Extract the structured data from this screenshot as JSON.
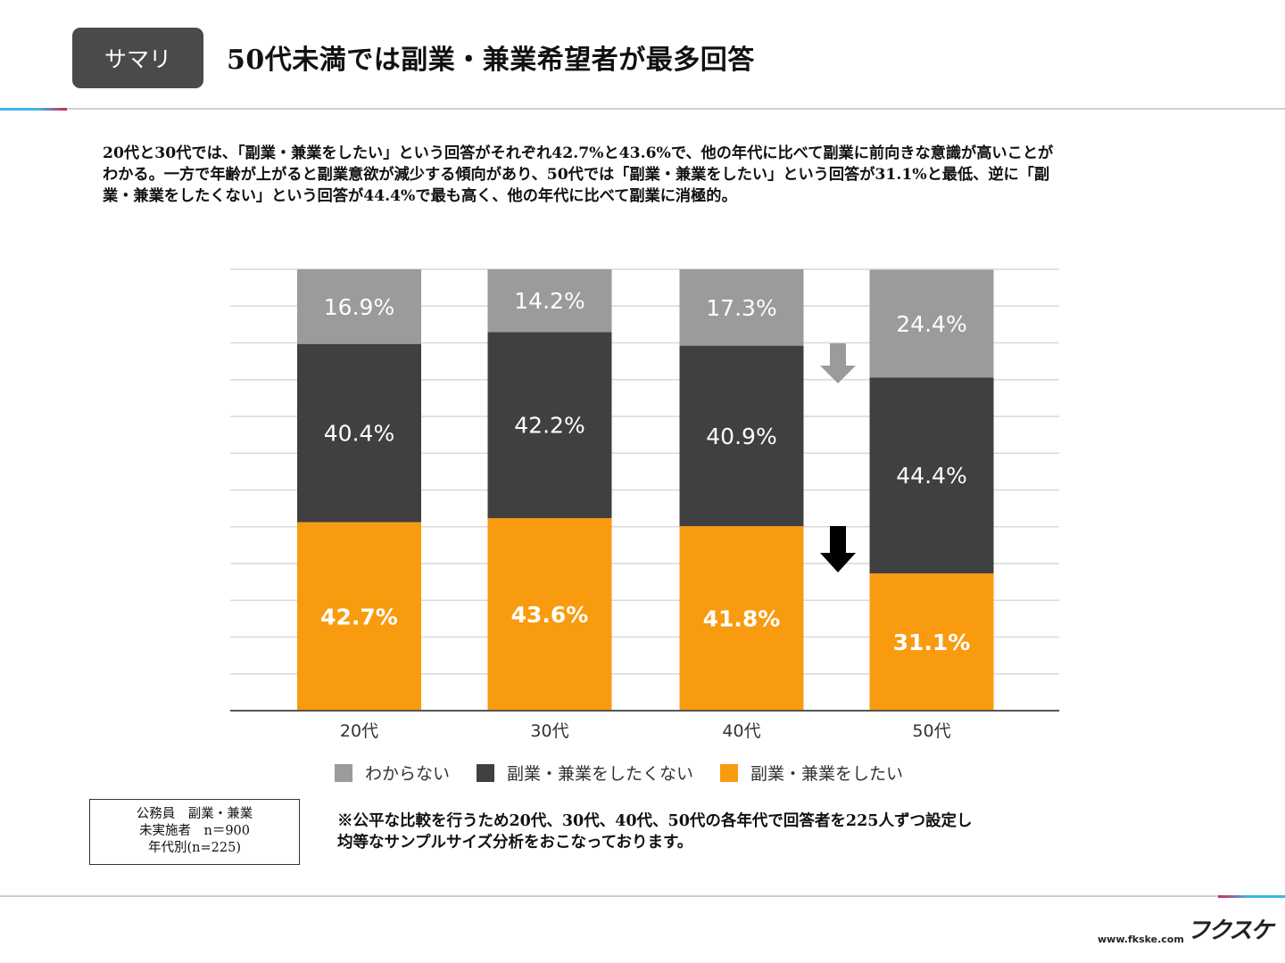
{
  "header": {
    "tag": "サマリ",
    "title": "50代未満では副業・兼業希望者が最多回答"
  },
  "summary": {
    "lines": [
      "20代と30代では、「副業・兼業をしたい」という回答がそれぞれ42.7%と43.6%で、他の年代に比べて副業に前向きな意識が高いことが",
      "わかる。一方で年齢が上がると副業意欲が減少する傾向があり、50代では「副業・兼業をしたい」という回答が31.1%と最低、逆に「副",
      "業・兼業をしたくない」という回答が44.4%で最も高く、他の年代に比べて副業に消極的。"
    ]
  },
  "chart_data": {
    "type": "bar",
    "stacked": true,
    "categories": [
      "20代",
      "30代",
      "40代",
      "50代"
    ],
    "series": [
      {
        "name": "副業・兼業をしたい",
        "color": "#f89b0f",
        "values": [
          42.7,
          43.6,
          41.8,
          31.1
        ],
        "labels": [
          "42.7%",
          "43.6%",
          "41.8%",
          "31.1%"
        ]
      },
      {
        "name": "副業・兼業をしたくない",
        "color": "#404040",
        "values": [
          40.4,
          42.2,
          40.9,
          44.4
        ],
        "labels": [
          "40.4%",
          "42.2%",
          "40.9%",
          "44.4%"
        ]
      },
      {
        "name": "わからない",
        "color": "#9b9b9b",
        "values": [
          16.9,
          14.2,
          17.3,
          24.4
        ],
        "labels": [
          "16.9%",
          "14.2%",
          "17.3%",
          "24.4%"
        ]
      }
    ],
    "ylim": [
      0,
      100
    ],
    "grid": true,
    "legend_position": "bottom",
    "annotations": [
      "arrow-down-gray between 40代 and 50代 (わからない)",
      "arrow-down-black between 40代 and 50代 (副業・兼業をしたい)"
    ]
  },
  "legend": {
    "items": [
      {
        "label": "わからない",
        "color": "#9b9b9b"
      },
      {
        "label": "副業・兼業をしたくない",
        "color": "#404040"
      },
      {
        "label": "副業・兼業をしたい",
        "color": "#f89b0f"
      }
    ]
  },
  "notebox": {
    "line1": "公務員　副業・兼業",
    "line2": "未実施者　n＝900",
    "line3": "年代別(n=225)"
  },
  "footnote": {
    "line1": "※公平な比較を行うため20代、30代、40代、50代の各年代で回答者を225人ずつ設定し",
    "line2": "均等なサンプルサイズ分析をおこなっております。"
  },
  "footer": {
    "url": "www.fkske.com",
    "logo": "フクスケ"
  }
}
